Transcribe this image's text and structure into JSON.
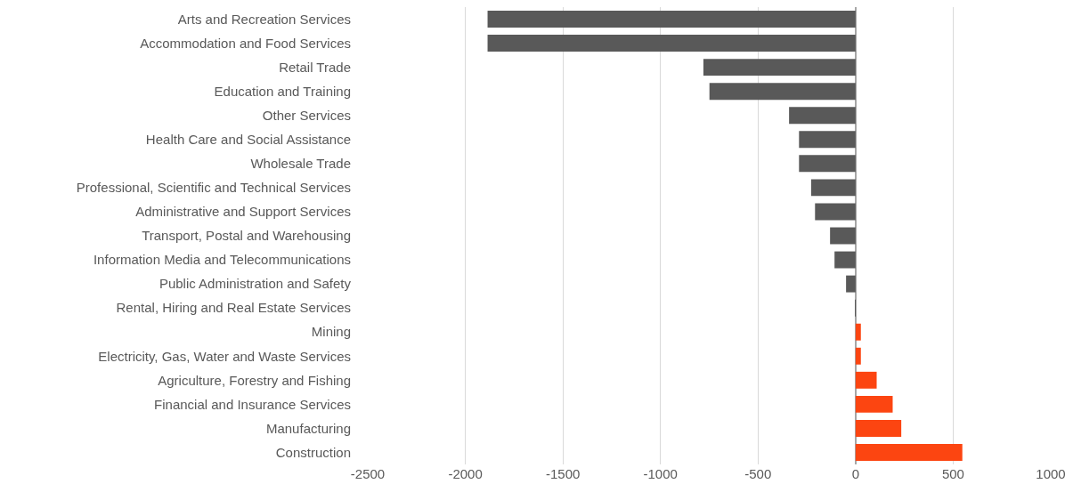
{
  "chart_data": {
    "type": "bar",
    "orientation": "horizontal",
    "categories": [
      "Arts and Recreation Services",
      "Accommodation and Food Services",
      "Retail Trade",
      "Education and Training",
      "Other Services",
      "Health Care and Social Assistance",
      "Wholesale Trade",
      "Professional, Scientific and Technical Services",
      "Administrative and Support Services",
      "Transport, Postal and Warehousing",
      "Information Media and Telecommunications",
      "Public Administration and Safety",
      "Rental, Hiring and Real Estate Services",
      "Mining",
      "Electricity, Gas, Water and Waste Services",
      "Agriculture, Forestry and Fishing",
      "Financial and Insurance Services",
      "Manufacturing",
      "Construction"
    ],
    "values": [
      -1886,
      -1886,
      -780,
      -749,
      -341,
      -290,
      -290,
      -228,
      -208,
      -131,
      -108,
      -49,
      -3,
      27,
      27,
      108,
      190,
      234,
      547
    ],
    "colors": [
      "#595959",
      "#595959",
      "#595959",
      "#595959",
      "#595959",
      "#595959",
      "#595959",
      "#595959",
      "#595959",
      "#595959",
      "#595959",
      "#595959",
      "#595959",
      "#fc4511",
      "#fc4511",
      "#fc4511",
      "#fc4511",
      "#fc4511",
      "#fc4511"
    ],
    "xlim": [
      -2500,
      1000
    ],
    "xticks": [
      -2500,
      -2000,
      -1500,
      -1000,
      -500,
      0,
      500,
      1000
    ],
    "grid": "x"
  }
}
